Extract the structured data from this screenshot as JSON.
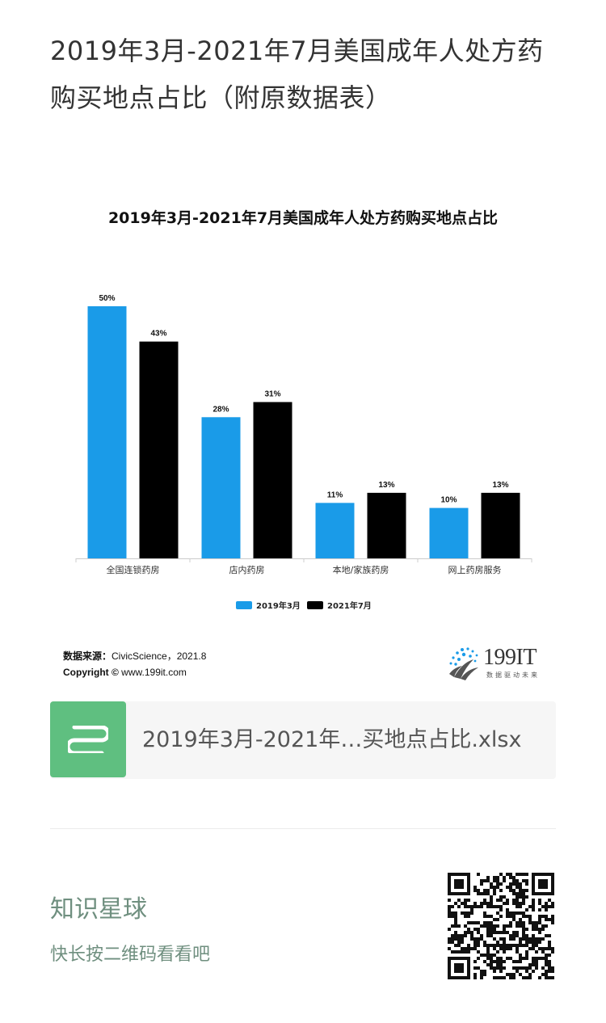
{
  "page": {
    "title": "2019年3月-2021年7月美国成年人处方药购买地点占比（附原数据表）"
  },
  "chart_data": {
    "type": "bar",
    "title": "2019年3月-2021年7月美国成年人处方药购买地点占比",
    "categories": [
      "全国连锁药房",
      "店内药房",
      "本地/家族药房",
      "网上药房服务"
    ],
    "series": [
      {
        "name": "2019年3月",
        "values": [
          50,
          28,
          11,
          10
        ],
        "color": "#1a9be8"
      },
      {
        "name": "2021年7月",
        "values": [
          43,
          31,
          13,
          13
        ],
        "color": "#000000"
      }
    ],
    "value_suffix": "%",
    "ylim": [
      0,
      50
    ],
    "grid": false,
    "legend_position": "bottom"
  },
  "source": {
    "label": "数据来源：",
    "text": "CivicScience，2021.8",
    "copyright_label": "Copyright ©",
    "copyright_text": " www.199it.com"
  },
  "logo": {
    "name": "199IT",
    "tagline": "数据驱动未来"
  },
  "file": {
    "name": "2019年3月-2021年…买地点占比.xlsx"
  },
  "footer": {
    "title": "知识星球",
    "subtitle": "快长按二维码看看吧"
  }
}
